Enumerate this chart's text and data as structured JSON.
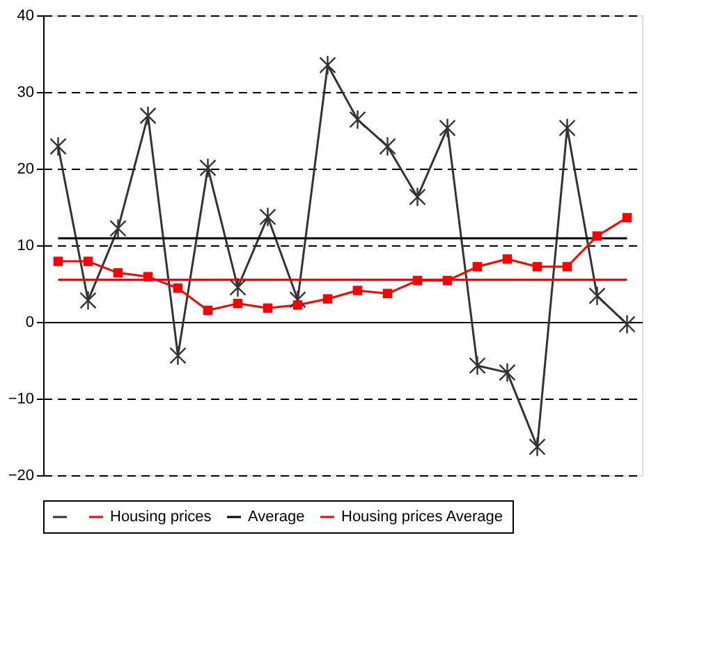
{
  "chart_data": {
    "type": "line",
    "categories": [
      null,
      null,
      null,
      null,
      null,
      null,
      null,
      null,
      null,
      null,
      null,
      null,
      null,
      null,
      null,
      null,
      null,
      null,
      null,
      null
    ],
    "series": [
      {
        "color": "#333333",
        "marker": "cross",
        "values": [
          22.9,
          2.8,
          12.2,
          26.9,
          -4.4,
          20.1,
          4.5,
          13.7,
          2.9,
          33.5,
          26.4,
          22.9,
          16.3,
          25.3,
          -5.7,
          -6.6,
          -16.3,
          25.3,
          3.4,
          -0.3
        ]
      },
      {
        "name": "Housing prices",
        "color": "#ff0000",
        "marker": "square",
        "values": [
          7.9,
          7.9,
          6.4,
          5.9,
          4.4,
          1.5,
          2.4,
          1.8,
          2.2,
          3.0,
          4.1,
          3.7,
          5.4,
          5.4,
          7.2,
          8.2,
          7.2,
          7.2,
          11.2,
          13.6
        ]
      },
      {
        "name": "Average",
        "color": "#000000",
        "values": [
          10.9,
          10.9,
          10.9,
          10.9,
          10.9,
          10.9,
          10.9,
          10.9,
          10.9,
          10.9,
          10.9,
          10.9,
          10.9,
          10.9,
          10.9,
          10.9,
          10.9,
          10.9,
          10.9,
          10.9
        ]
      },
      {
        "name": "Housing prices Average",
        "color": "#ff0000",
        "values": [
          5.5,
          5.5,
          5.5,
          5.5,
          5.5,
          5.5,
          5.5,
          5.5,
          5.5,
          5.5,
          5.5,
          5.5,
          5.5,
          5.5,
          5.5,
          5.5,
          5.5,
          5.5,
          5.5,
          5.5
        ]
      }
    ],
    "ylim": [
      -20,
      40
    ],
    "yticks": [
      -20,
      -10,
      0,
      10,
      20,
      30,
      40
    ],
    "grid": "y",
    "line_style": "solid",
    "legend": "bottom"
  }
}
